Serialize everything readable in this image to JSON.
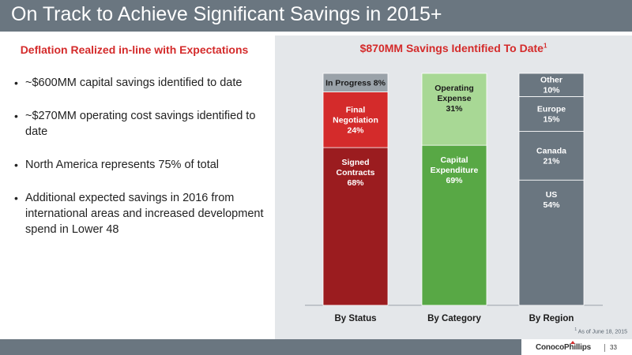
{
  "slide": {
    "title": "On Track to Achieve Significant Savings in 2015+",
    "page_number": "33",
    "company_logo": "ConocoPhillips",
    "colors": {
      "title_bar": "#6a7680",
      "heading_red": "#d42b2b",
      "panel_bg": "#e4e7ea"
    }
  },
  "left": {
    "heading": "Deflation Realized in-line with Expectations",
    "bullets": [
      "~$600MM capital savings identified to date",
      "~$270MM operating cost savings identified to date",
      "North America represents 75% of total",
      "Additional expected savings in 2016 from international areas and increased development spend in Lower 48"
    ]
  },
  "right": {
    "heading": "$870MM Savings Identified To Date",
    "heading_sup": "1",
    "footnote_sup": "1",
    "footnote": "As of June 18, 2015"
  },
  "chart_data": {
    "type": "bar",
    "stacked": true,
    "unit": "%",
    "ylim": [
      0,
      100
    ],
    "categories": [
      "By Status",
      "By Category",
      "By Region"
    ],
    "bars": [
      {
        "category": "By Status",
        "segments": [
          {
            "label": "Signed Contracts",
            "value": 68,
            "value_label": "68%",
            "color": "#9b1c1f",
            "text_color": "#ffffff"
          },
          {
            "label": "Final Negotiation",
            "value": 24,
            "value_label": "24%",
            "color": "#d42b2b",
            "text_color": "#ffffff"
          },
          {
            "label": "In Progress",
            "value": 8,
            "value_label": "8%",
            "color": "#9aa2a9",
            "text_color": "#1a1a1a",
            "inline": true
          }
        ]
      },
      {
        "category": "By Category",
        "segments": [
          {
            "label": "Capital Expenditure",
            "value": 69,
            "value_label": "69%",
            "color": "#58a845",
            "text_color": "#ffffff"
          },
          {
            "label": "Operating Expense",
            "value": 31,
            "value_label": "31%",
            "color": "#a8d895",
            "text_color": "#1a1a1a"
          }
        ]
      },
      {
        "category": "By Region",
        "segments": [
          {
            "label": "US",
            "value": 54,
            "value_label": "54%",
            "color": "#6a7680",
            "text_color": "#ffffff"
          },
          {
            "label": "Canada",
            "value": 21,
            "value_label": "21%",
            "color": "#6a7680",
            "text_color": "#ffffff"
          },
          {
            "label": "Europe",
            "value": 15,
            "value_label": "15%",
            "color": "#6a7680",
            "text_color": "#ffffff"
          },
          {
            "label": "Other",
            "value": 10,
            "value_label": "10%",
            "color": "#6a7680",
            "text_color": "#ffffff"
          }
        ]
      }
    ]
  }
}
